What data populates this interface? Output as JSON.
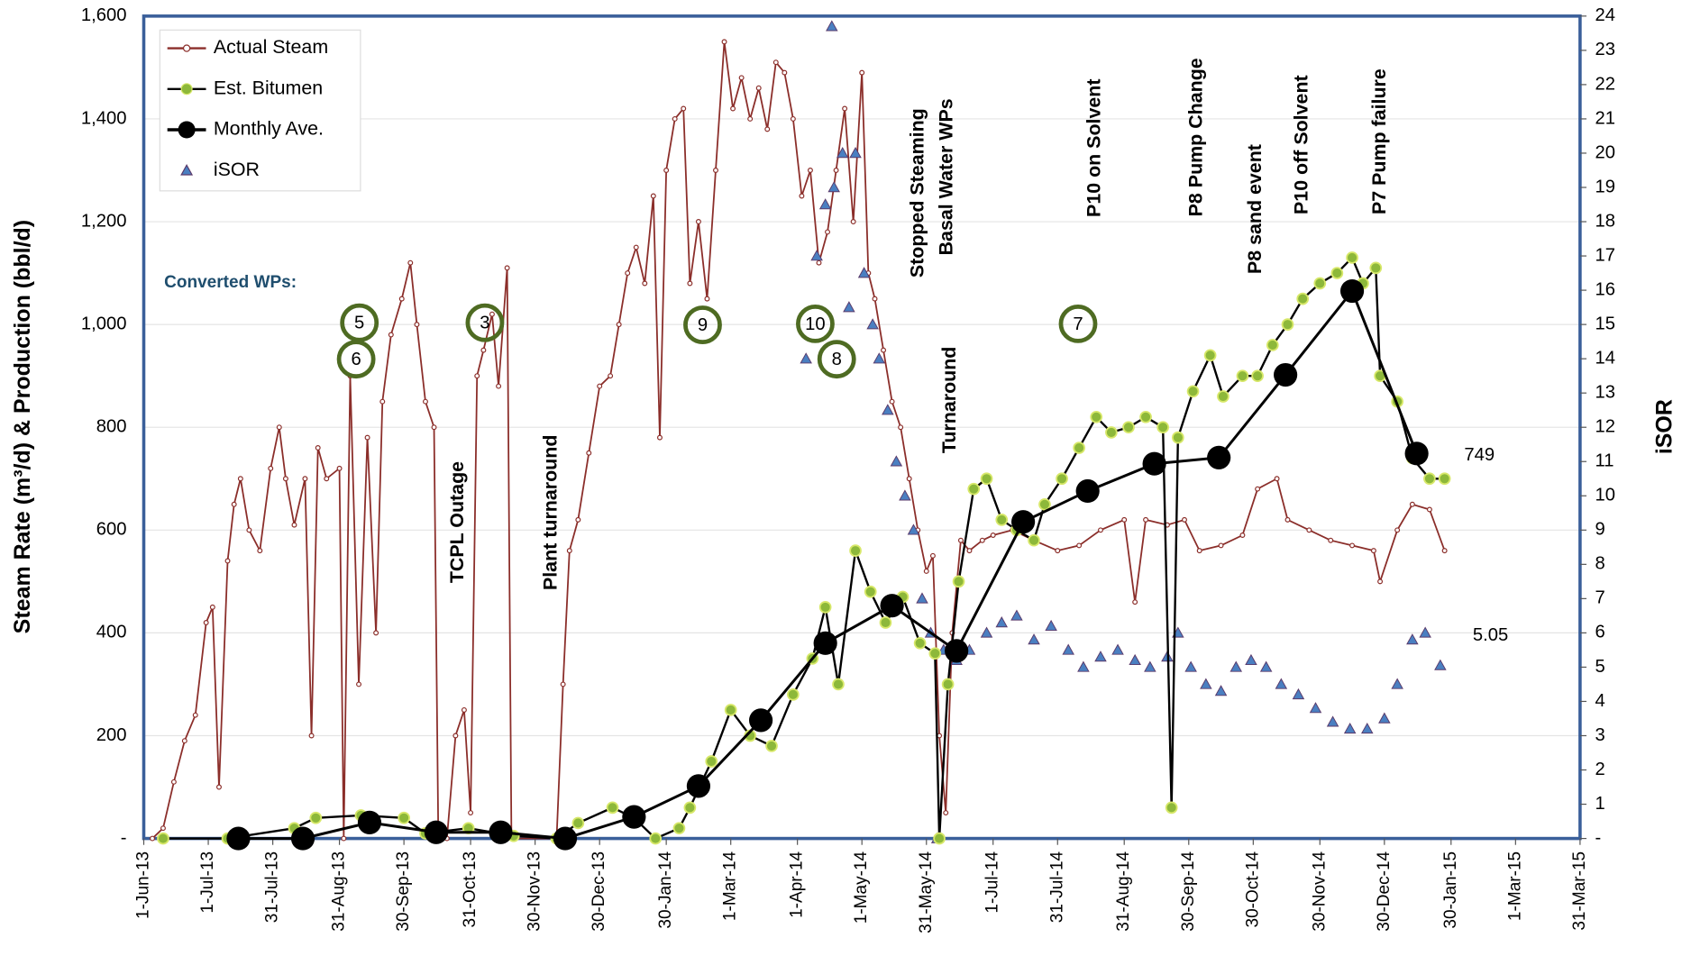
{
  "chart_data": {
    "type": "line",
    "y_label": "Steam Rate (m³/d) & Production (bbl/d)",
    "y2_label": "iSOR",
    "xlim": [
      "2013-06-01",
      "2015-03-31"
    ],
    "xticks": [
      {
        "value": "2013-06-01",
        "label": "1-Jun-13"
      },
      {
        "value": "2013-07-01",
        "label": "1-Jul-13"
      },
      {
        "value": "2013-07-31",
        "label": "31-Jul-13"
      },
      {
        "value": "2013-08-31",
        "label": "31-Aug-13"
      },
      {
        "value": "2013-09-30",
        "label": "30-Sep-13"
      },
      {
        "value": "2013-10-31",
        "label": "31-Oct-13"
      },
      {
        "value": "2013-11-30",
        "label": "30-Nov-13"
      },
      {
        "value": "2013-12-30",
        "label": "30-Dec-13"
      },
      {
        "value": "2014-01-30",
        "label": "30-Jan-14"
      },
      {
        "value": "2014-03-01",
        "label": "1-Mar-14"
      },
      {
        "value": "2014-04-01",
        "label": "1-Apr-14"
      },
      {
        "value": "2014-05-01",
        "label": "1-May-14"
      },
      {
        "value": "2014-05-31",
        "label": "31-May-14"
      },
      {
        "value": "2014-07-01",
        "label": "1-Jul-14"
      },
      {
        "value": "2014-07-31",
        "label": "31-Jul-14"
      },
      {
        "value": "2014-08-31",
        "label": "31-Aug-14"
      },
      {
        "value": "2014-09-30",
        "label": "30-Sep-14"
      },
      {
        "value": "2014-10-30",
        "label": "30-Oct-14"
      },
      {
        "value": "2014-11-30",
        "label": "30-Nov-14"
      },
      {
        "value": "2014-12-30",
        "label": "30-Dec-14"
      },
      {
        "value": "2015-01-30",
        "label": "30-Jan-15"
      },
      {
        "value": "2015-03-01",
        "label": "1-Mar-15"
      },
      {
        "value": "2015-03-31",
        "label": "31-Mar-15"
      }
    ],
    "ylim": [
      0,
      1600
    ],
    "yticks": [
      {
        "value": 0,
        "label": "-"
      },
      {
        "value": 200,
        "label": "200"
      },
      {
        "value": 400,
        "label": "400"
      },
      {
        "value": 600,
        "label": "600"
      },
      {
        "value": 800,
        "label": "800"
      },
      {
        "value": 1000,
        "label": "1,000"
      },
      {
        "value": 1200,
        "label": "1,200"
      },
      {
        "value": 1400,
        "label": "1,400"
      },
      {
        "value": 1600,
        "label": "1,600"
      }
    ],
    "y2lim": [
      0,
      24
    ],
    "y2ticks": [
      {
        "value": 0,
        "label": "-"
      },
      1,
      2,
      3,
      4,
      5,
      6,
      7,
      8,
      9,
      10,
      11,
      12,
      13,
      14,
      15,
      16,
      17,
      18,
      19,
      20,
      21,
      22,
      23,
      24
    ],
    "grid": true,
    "legend": "upper left",
    "series": [
      {
        "name": "Actual Steam",
        "color": "#8b2e2a",
        "style": "thin-hollow",
        "x": [
          "2013-06-05",
          "2013-06-10",
          "2013-06-15",
          "2013-06-20",
          "2013-06-25",
          "2013-06-30",
          "2013-07-03",
          "2013-07-06",
          "2013-07-10",
          "2013-07-13",
          "2013-07-16",
          "2013-07-20",
          "2013-07-25",
          "2013-07-30",
          "2013-08-03",
          "2013-08-06",
          "2013-08-10",
          "2013-08-15",
          "2013-08-18",
          "2013-08-21",
          "2013-08-25",
          "2013-08-31",
          "2013-09-02",
          "2013-09-05",
          "2013-09-09",
          "2013-09-13",
          "2013-09-17",
          "2013-09-20",
          "2013-09-24",
          "2013-09-29",
          "2013-10-03",
          "2013-10-06",
          "2013-10-10",
          "2013-10-14",
          "2013-10-16",
          "2013-10-20",
          "2013-10-24",
          "2013-10-28",
          "2013-10-31",
          "2013-11-03",
          "2013-11-06",
          "2013-11-10",
          "2013-11-13",
          "2013-11-17",
          "2013-11-19",
          "2013-12-10",
          "2013-12-13",
          "2013-12-16",
          "2013-12-20",
          "2013-12-25",
          "2013-12-30",
          "2014-01-04",
          "2014-01-08",
          "2014-01-12",
          "2014-01-16",
          "2014-01-20",
          "2014-01-24",
          "2014-01-27",
          "2014-01-30",
          "2014-02-03",
          "2014-02-07",
          "2014-02-10",
          "2014-02-14",
          "2014-02-18",
          "2014-02-22",
          "2014-02-26",
          "2014-03-02",
          "2014-03-06",
          "2014-03-10",
          "2014-03-14",
          "2014-03-18",
          "2014-03-22",
          "2014-03-26",
          "2014-03-30",
          "2014-04-03",
          "2014-04-07",
          "2014-04-11",
          "2014-04-15",
          "2014-04-19",
          "2014-04-23",
          "2014-04-27",
          "2014-05-01",
          "2014-05-04",
          "2014-05-07",
          "2014-05-11",
          "2014-05-15",
          "2014-05-19",
          "2014-05-23",
          "2014-05-27",
          "2014-05-31",
          "2014-06-03",
          "2014-06-06",
          "2014-06-09",
          "2014-06-12",
          "2014-06-16",
          "2014-06-20",
          "2014-06-26",
          "2014-07-01",
          "2014-07-10",
          "2014-07-20",
          "2014-07-31",
          "2014-08-10",
          "2014-08-20",
          "2014-08-31",
          "2014-09-05",
          "2014-09-10",
          "2014-09-20",
          "2014-09-28",
          "2014-10-05",
          "2014-10-15",
          "2014-10-25",
          "2014-11-01",
          "2014-11-10",
          "2014-11-15",
          "2014-11-25",
          "2014-12-05",
          "2014-12-15",
          "2014-12-25",
          "2014-12-28",
          "2015-01-05",
          "2015-01-12",
          "2015-01-20",
          "2015-01-27"
        ],
        "values": [
          0,
          20,
          110,
          190,
          240,
          420,
          450,
          100,
          540,
          650,
          700,
          600,
          560,
          720,
          800,
          700,
          610,
          700,
          200,
          760,
          700,
          720,
          0,
          900,
          300,
          780,
          400,
          850,
          980,
          1050,
          1120,
          1000,
          850,
          800,
          0,
          0,
          200,
          250,
          50,
          900,
          950,
          1020,
          880,
          1110,
          0,
          0,
          300,
          560,
          620,
          750,
          880,
          900,
          1000,
          1100,
          1150,
          1080,
          1250,
          780,
          1300,
          1400,
          1420,
          1080,
          1200,
          1050,
          1300,
          1550,
          1420,
          1480,
          1400,
          1460,
          1380,
          1510,
          1490,
          1400,
          1250,
          1300,
          1120,
          1180,
          1300,
          1420,
          1200,
          1490,
          1100,
          1050,
          950,
          850,
          800,
          700,
          600,
          520,
          550,
          200,
          50,
          400,
          580,
          560,
          580,
          590,
          600,
          580,
          560,
          570,
          600,
          620,
          460,
          620,
          610,
          620,
          560,
          570,
          590,
          680,
          700,
          620,
          600,
          580,
          570,
          560,
          500,
          600,
          650,
          640,
          560
        ]
      },
      {
        "name": "Est. Bitumen",
        "color": "#000000",
        "marker_color": "#8db83a",
        "style": "green-dot",
        "x": [
          "2013-06-10",
          "2013-07-10",
          "2013-08-10",
          "2013-08-20",
          "2013-09-10",
          "2013-09-30",
          "2013-10-10",
          "2013-10-30",
          "2013-11-20",
          "2013-12-10",
          "2013-12-20",
          "2014-01-05",
          "2014-01-15",
          "2014-01-25",
          "2014-02-05",
          "2014-02-10",
          "2014-02-20",
          "2014-03-01",
          "2014-03-10",
          "2014-03-20",
          "2014-03-30",
          "2014-04-08",
          "2014-04-14",
          "2014-04-20",
          "2014-04-28",
          "2014-05-05",
          "2014-05-12",
          "2014-05-20",
          "2014-05-28",
          "2014-06-04",
          "2014-06-06",
          "2014-06-10",
          "2014-06-15",
          "2014-06-22",
          "2014-06-28",
          "2014-07-05",
          "2014-07-12",
          "2014-07-20",
          "2014-07-25",
          "2014-08-02",
          "2014-08-10",
          "2014-08-18",
          "2014-08-25",
          "2014-09-02",
          "2014-09-10",
          "2014-09-18",
          "2014-09-22",
          "2014-09-25",
          "2014-10-02",
          "2014-10-10",
          "2014-10-16",
          "2014-10-25",
          "2014-11-01",
          "2014-11-08",
          "2014-11-15",
          "2014-11-22",
          "2014-11-30",
          "2014-12-08",
          "2014-12-15",
          "2014-12-20",
          "2014-12-26",
          "2014-12-28",
          "2015-01-05",
          "2015-01-12",
          "2015-01-20",
          "2015-01-27"
        ],
        "values": [
          0,
          0,
          20,
          40,
          45,
          40,
          10,
          20,
          5,
          0,
          30,
          60,
          40,
          0,
          20,
          60,
          150,
          250,
          200,
          180,
          280,
          350,
          450,
          300,
          560,
          480,
          420,
          470,
          380,
          360,
          0,
          300,
          500,
          680,
          700,
          620,
          600,
          580,
          650,
          700,
          760,
          820,
          790,
          800,
          820,
          800,
          60,
          780,
          870,
          940,
          860,
          900,
          900,
          960,
          1000,
          1050,
          1080,
          1100,
          1130,
          1080,
          1110,
          900,
          850,
          740,
          700,
          700
        ]
      },
      {
        "name": "Monthly Ave.",
        "color": "#000000",
        "style": "big-dot",
        "x": [
          "2013-07-15",
          "2013-08-14",
          "2013-09-14",
          "2013-10-15",
          "2013-11-14",
          "2013-12-14",
          "2014-01-15",
          "2014-02-14",
          "2014-03-15",
          "2014-04-14",
          "2014-05-15",
          "2014-06-14",
          "2014-07-15",
          "2014-08-14",
          "2014-09-14",
          "2014-10-14",
          "2014-11-14",
          "2014-12-15",
          "2015-01-14"
        ],
        "values": [
          0,
          0,
          31,
          12,
          12,
          0,
          42,
          102,
          230,
          380,
          453,
          365,
          616,
          676,
          729,
          741,
          902,
          1065,
          749
        ]
      },
      {
        "name": "iSOR",
        "color": "#4a7fc1",
        "style": "triangle",
        "axis": "y2",
        "x": [
          "2014-04-05",
          "2014-04-10",
          "2014-04-14",
          "2014-04-17",
          "2014-04-18",
          "2014-04-22",
          "2014-04-25",
          "2014-04-28",
          "2014-05-02",
          "2014-05-06",
          "2014-05-09",
          "2014-05-13",
          "2014-05-17",
          "2014-05-21",
          "2014-05-25",
          "2014-05-29",
          "2014-06-02",
          "2014-06-05",
          "2014-06-08",
          "2014-06-14",
          "2014-06-20",
          "2014-06-28",
          "2014-07-05",
          "2014-07-12",
          "2014-07-20",
          "2014-07-28",
          "2014-08-05",
          "2014-08-12",
          "2014-08-20",
          "2014-08-28",
          "2014-09-05",
          "2014-09-12",
          "2014-09-20",
          "2014-09-25",
          "2014-10-01",
          "2014-10-08",
          "2014-10-15",
          "2014-10-22",
          "2014-10-29",
          "2014-11-05",
          "2014-11-12",
          "2014-11-20",
          "2014-11-28",
          "2014-12-06",
          "2014-12-14",
          "2014-12-22",
          "2014-12-30",
          "2015-01-05",
          "2015-01-12",
          "2015-01-18",
          "2015-01-25"
        ],
        "values": [
          14,
          17,
          18.5,
          23.7,
          19,
          20,
          15.5,
          20,
          16.5,
          15,
          14,
          12.5,
          11,
          10,
          9,
          7,
          6,
          0,
          5.5,
          5.2,
          5.5,
          6,
          6.3,
          6.5,
          5.8,
          6.2,
          5.5,
          5,
          5.3,
          5.5,
          5.2,
          5,
          5.3,
          6,
          5,
          4.5,
          4.3,
          5,
          5.2,
          5,
          4.5,
          4.2,
          3.8,
          3.4,
          3.2,
          3.2,
          3.5,
          4.5,
          5.8,
          6,
          5.05
        ]
      }
    ],
    "wp_title": "Converted WPs:",
    "wp_markers": [
      "5",
      "6",
      "3",
      "9",
      "10",
      "8",
      "7"
    ],
    "annotations": [
      "TCPL Outage",
      "Plant turnaround",
      "Stopped Steaming",
      "Basal Water WPs",
      "Turnaround",
      "P10 on Solvent",
      "P8 Pump Change",
      "P8 sand event",
      "P10 off Solvent",
      "P7 Pump failure"
    ]
  }
}
